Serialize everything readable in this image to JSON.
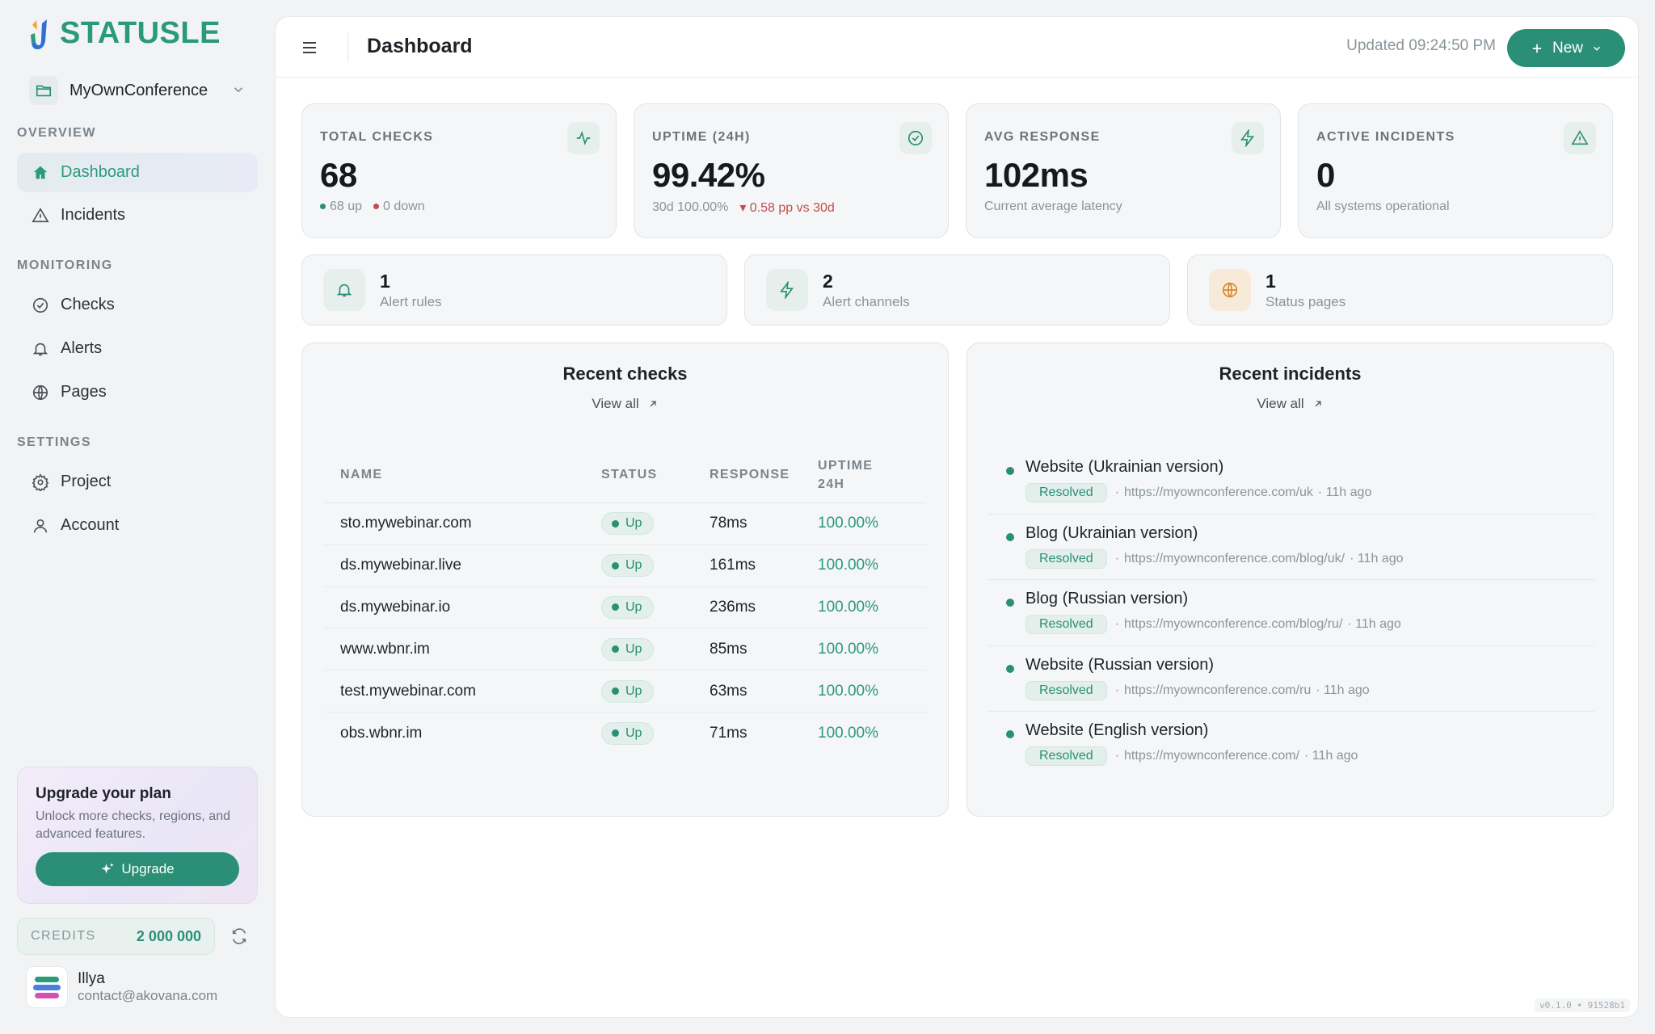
{
  "brand": {
    "name": "STATUSLE",
    "accent": "#2a9a7c"
  },
  "sidebar": {
    "project": "MyOwnConference",
    "sections": [
      {
        "title": "OVERVIEW",
        "items": [
          {
            "label": "Dashboard",
            "icon": "home-icon",
            "active": true
          },
          {
            "label": "Incidents",
            "icon": "warning-icon"
          }
        ]
      },
      {
        "title": "MONITORING",
        "items": [
          {
            "label": "Checks",
            "icon": "check-circle-icon"
          },
          {
            "label": "Alerts",
            "icon": "bell-icon"
          },
          {
            "label": "Pages",
            "icon": "globe-icon"
          }
        ]
      },
      {
        "title": "SETTINGS",
        "items": [
          {
            "label": "Project",
            "icon": "gear-icon"
          },
          {
            "label": "Account",
            "icon": "user-icon"
          }
        ]
      }
    ],
    "upgrade": {
      "title": "Upgrade your plan",
      "text": "Unlock more checks, regions, and advanced features.",
      "button": "Upgrade"
    },
    "credits": {
      "label": "CREDITS",
      "value": "2 000 000"
    },
    "user": {
      "name": "Illya",
      "email": "contact@akovana.com"
    }
  },
  "header": {
    "title": "Dashboard",
    "updated": "Updated 09:24:50 PM",
    "new_button": "New"
  },
  "stats": [
    {
      "label": "TOTAL CHECKS",
      "value": "68",
      "icon": "activity-icon",
      "sub_up": "68 up",
      "sub_down": "0 down"
    },
    {
      "label": "UPTIME (24H)",
      "value": "99.42%",
      "icon": "check-circle-icon",
      "sub_a": "30d 100.00%",
      "sub_b": "▾ 0.58 pp vs 30d"
    },
    {
      "label": "AVG RESPONSE",
      "value": "102ms",
      "icon": "bolt-icon",
      "sub": "Current average latency"
    },
    {
      "label": "ACTIVE INCIDENTS",
      "value": "0",
      "icon": "warning-icon",
      "sub": "All systems operational"
    }
  ],
  "mini": [
    {
      "value": "1",
      "caption": "Alert rules",
      "icon": "bell-icon"
    },
    {
      "value": "2",
      "caption": "Alert channels",
      "icon": "bolt-icon"
    },
    {
      "value": "1",
      "caption": "Status pages",
      "icon": "globe-icon"
    }
  ],
  "checks": {
    "title": "Recent checks",
    "view_all": "View all",
    "columns": [
      "NAME",
      "STATUS",
      "RESPONSE",
      "UPTIME",
      "24H"
    ],
    "rows": [
      {
        "name": "sto.mywebinar.com",
        "status": "Up",
        "response": "78ms",
        "uptime": "100.00%"
      },
      {
        "name": "ds.mywebinar.live",
        "status": "Up",
        "response": "161ms",
        "uptime": "100.00%"
      },
      {
        "name": "ds.mywebinar.io",
        "status": "Up",
        "response": "236ms",
        "uptime": "100.00%"
      },
      {
        "name": "www.wbnr.im",
        "status": "Up",
        "response": "85ms",
        "uptime": "100.00%"
      },
      {
        "name": "test.mywebinar.com",
        "status": "Up",
        "response": "63ms",
        "uptime": "100.00%"
      },
      {
        "name": "obs.wbnr.im",
        "status": "Up",
        "response": "71ms",
        "uptime": "100.00%"
      }
    ]
  },
  "incidents": {
    "title": "Recent incidents",
    "view_all": "View all",
    "items": [
      {
        "title": "Website (Ukrainian version)",
        "status": "Resolved",
        "url": "https://myownconference.com/uk",
        "ago": "· 11h ago"
      },
      {
        "title": "Blog (Ukrainian version)",
        "status": "Resolved",
        "url": "https://myownconference.com/blog/uk/",
        "ago": "· 11h ago"
      },
      {
        "title": "Blog (Russian version)",
        "status": "Resolved",
        "url": "https://myownconference.com/blog/ru/",
        "ago": "· 11h ago"
      },
      {
        "title": "Website (Russian version)",
        "status": "Resolved",
        "url": "https://myownconference.com/ru",
        "ago": "· 11h ago"
      },
      {
        "title": "Website (English version)",
        "status": "Resolved",
        "url": "https://myownconference.com/",
        "ago": "· 11h ago"
      }
    ]
  },
  "version": "v0.1.0 • 91528b1"
}
